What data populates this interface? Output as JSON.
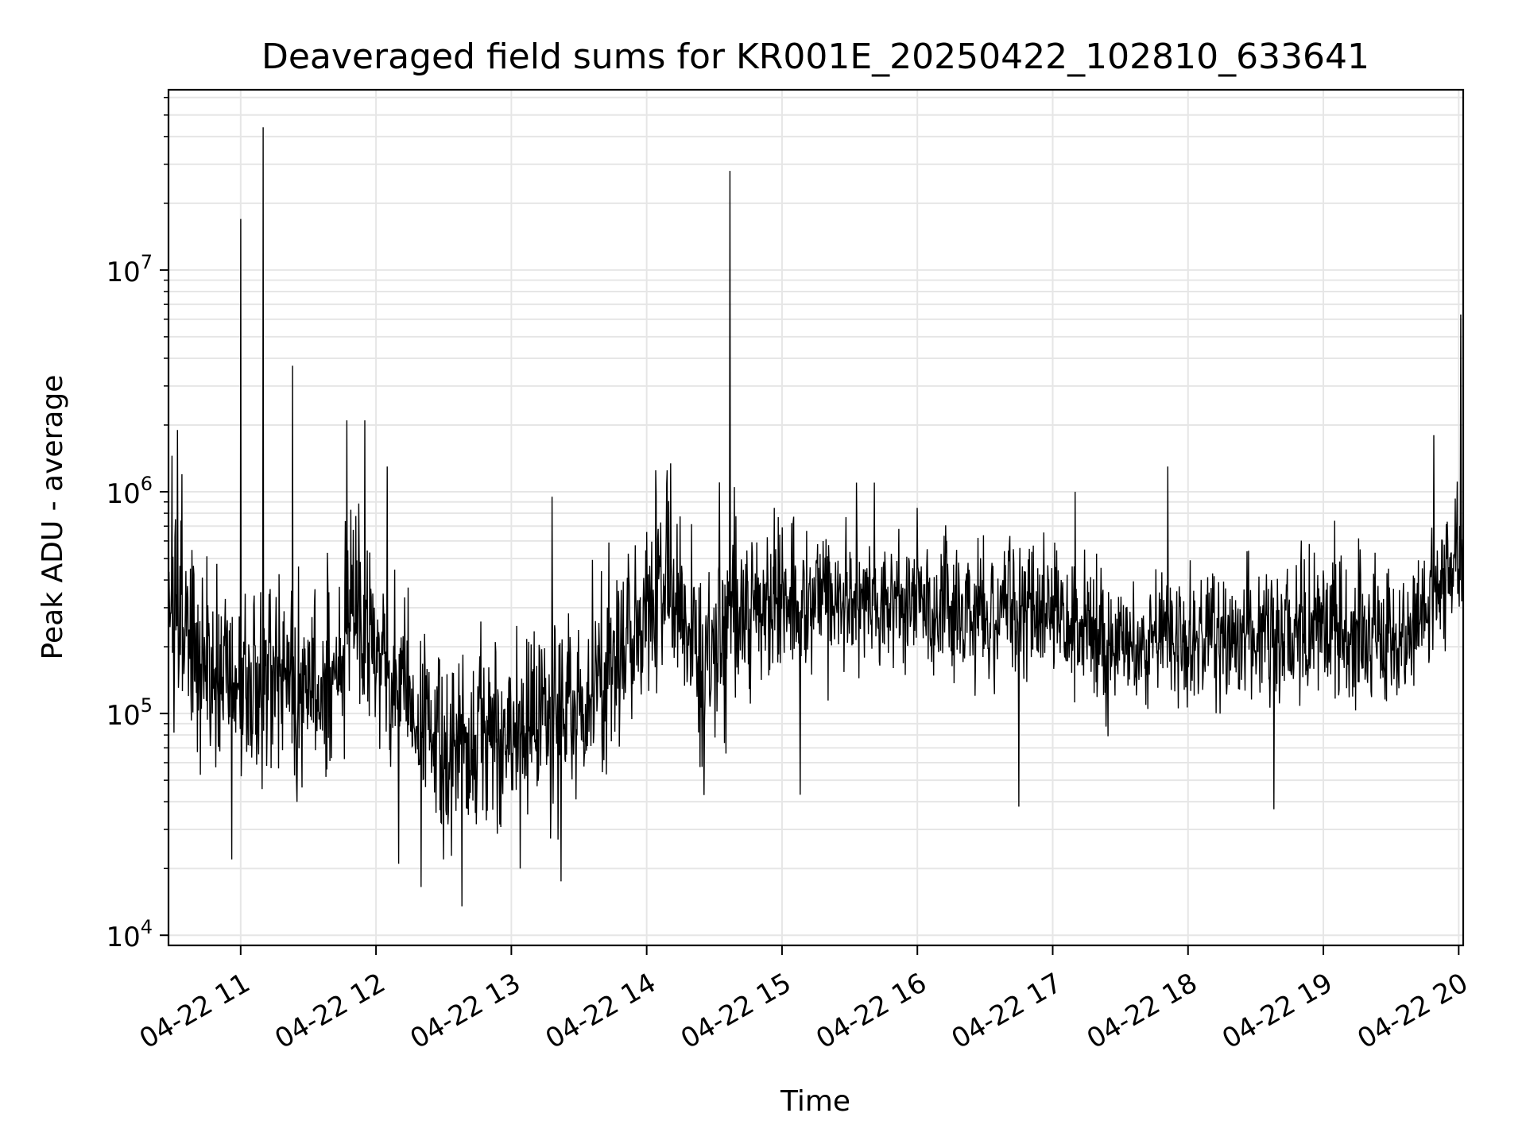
{
  "chart_data": {
    "type": "line",
    "title": "Deaveraged field sums for KR001E_20250422_102810_633641",
    "xlabel": "Time",
    "ylabel": "Peak ADU - average",
    "x_axis": {
      "kind": "time",
      "range": [
        "2025-04-22T10:28",
        "2025-04-22T20:02"
      ],
      "ticks": [
        {
          "value": "2025-04-22T11:00",
          "label": "04-22 11"
        },
        {
          "value": "2025-04-22T12:00",
          "label": "04-22 12"
        },
        {
          "value": "2025-04-22T13:00",
          "label": "04-22 13"
        },
        {
          "value": "2025-04-22T14:00",
          "label": "04-22 14"
        },
        {
          "value": "2025-04-22T15:00",
          "label": "04-22 15"
        },
        {
          "value": "2025-04-22T16:00",
          "label": "04-22 16"
        },
        {
          "value": "2025-04-22T17:00",
          "label": "04-22 17"
        },
        {
          "value": "2025-04-22T18:00",
          "label": "04-22 18"
        },
        {
          "value": "2025-04-22T19:00",
          "label": "04-22 19"
        },
        {
          "value": "2025-04-22T20:00",
          "label": "04-22 20"
        }
      ]
    },
    "y_axis": {
      "scale": "log",
      "range": [
        9000,
        65000000
      ],
      "ticks": [
        {
          "value": 10000,
          "base": "10",
          "exp": "4"
        },
        {
          "value": 100000,
          "base": "10",
          "exp": "5"
        },
        {
          "value": 1000000,
          "base": "10",
          "exp": "6"
        },
        {
          "value": 10000000,
          "base": "10",
          "exp": "7"
        }
      ]
    },
    "grid": true,
    "line_color": "#000000",
    "grid_color": "#e6e6e6",
    "baseline": [
      [
        "2025-04-22T10:28",
        400000
      ],
      [
        "2025-04-22T10:40",
        160000
      ],
      [
        "2025-04-22T11:00",
        130000
      ],
      [
        "2025-04-22T11:20",
        150000
      ],
      [
        "2025-04-22T11:35",
        120000
      ],
      [
        "2025-04-22T11:50",
        260000
      ],
      [
        "2025-04-22T12:05",
        160000
      ],
      [
        "2025-04-22T12:20",
        90000
      ],
      [
        "2025-04-22T12:40",
        70000
      ],
      [
        "2025-04-22T13:00",
        90000
      ],
      [
        "2025-04-22T13:20",
        100000
      ],
      [
        "2025-04-22T13:40",
        130000
      ],
      [
        "2025-04-22T14:00",
        300000
      ],
      [
        "2025-04-22T14:10",
        450000
      ],
      [
        "2025-04-22T14:25",
        160000
      ],
      [
        "2025-04-22T14:40",
        300000
      ],
      [
        "2025-04-22T15:30",
        330000
      ],
      [
        "2025-04-22T16:30",
        290000
      ],
      [
        "2025-04-22T17:00",
        290000
      ],
      [
        "2025-04-22T17:30",
        210000
      ],
      [
        "2025-04-22T18:00",
        220000
      ],
      [
        "2025-04-22T18:30",
        230000
      ],
      [
        "2025-04-22T19:00",
        230000
      ],
      [
        "2025-04-22T19:30",
        220000
      ],
      [
        "2025-04-22T19:45",
        280000
      ],
      [
        "2025-04-22T19:55",
        420000
      ],
      [
        "2025-04-22T20:02",
        480000
      ]
    ],
    "spikes": [
      [
        "2025-04-22T10:32",
        1900000
      ],
      [
        "2025-04-22T10:34",
        1200000
      ],
      [
        "2025-04-22T11:00",
        17000000
      ],
      [
        "2025-04-22T11:10",
        44000000
      ],
      [
        "2025-04-22T11:23",
        3700000
      ],
      [
        "2025-04-22T11:47",
        2100000
      ],
      [
        "2025-04-22T11:55",
        2100000
      ],
      [
        "2025-04-22T12:05",
        1300000
      ],
      [
        "2025-04-22T13:18",
        950000
      ],
      [
        "2025-04-22T14:04",
        1250000
      ],
      [
        "2025-04-22T14:09",
        1250000
      ],
      [
        "2025-04-22T14:37",
        28000000
      ],
      [
        "2025-04-22T14:39",
        1050000
      ],
      [
        "2025-04-22T15:33",
        1100000
      ],
      [
        "2025-04-22T15:41",
        1100000
      ],
      [
        "2025-04-22T17:10",
        1000000
      ],
      [
        "2025-04-22T17:51",
        1300000
      ],
      [
        "2025-04-22T19:49",
        1800000
      ],
      [
        "2025-04-22T20:01",
        6300000
      ]
    ],
    "dips": [
      [
        "2025-04-22T10:56",
        22000
      ],
      [
        "2025-04-22T12:10",
        21000
      ],
      [
        "2025-04-22T12:20",
        16500
      ],
      [
        "2025-04-22T12:30",
        22000
      ],
      [
        "2025-04-22T12:38",
        13500
      ],
      [
        "2025-04-22T13:04",
        20000
      ],
      [
        "2025-04-22T13:22",
        17500
      ],
      [
        "2025-04-22T15:08",
        43000
      ],
      [
        "2025-04-22T16:45",
        38000
      ],
      [
        "2025-04-22T18:38",
        37000
      ]
    ]
  }
}
